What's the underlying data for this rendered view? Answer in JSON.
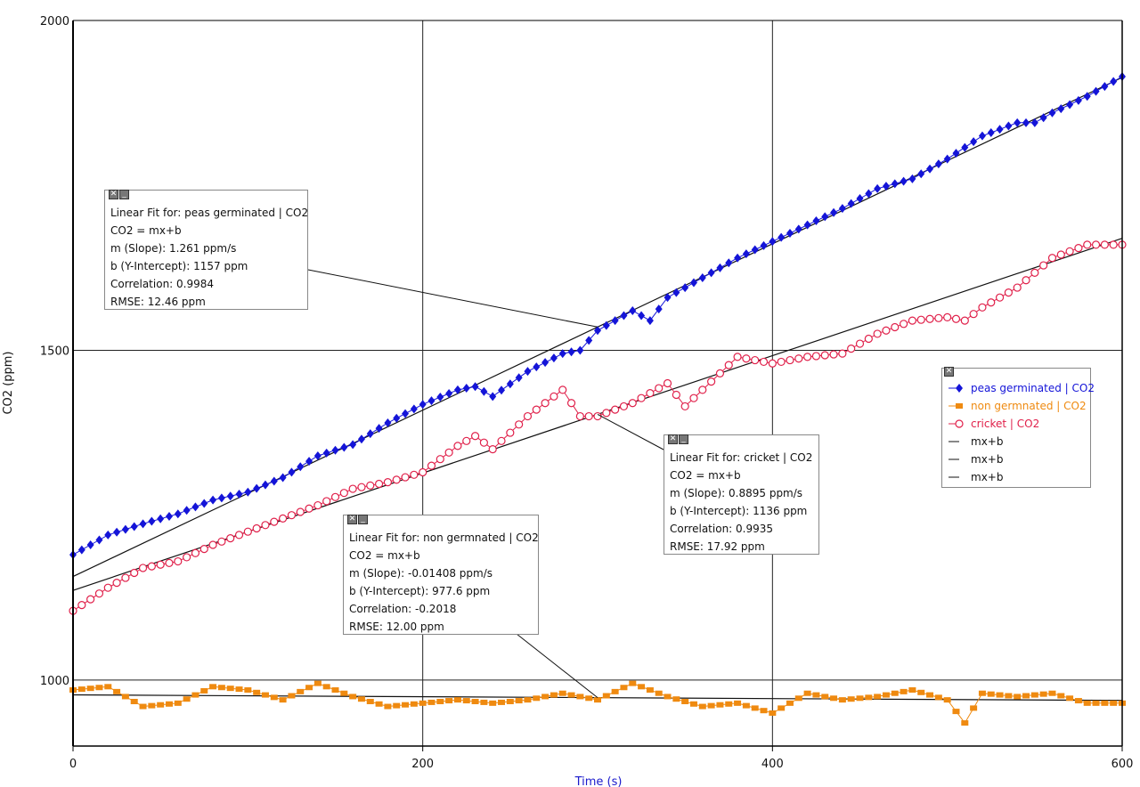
{
  "chart_data": {
    "type": "line",
    "xlabel": "Time (s)",
    "ylabel": "CO2 (ppm)",
    "xlim": [
      0,
      600
    ],
    "ylim": [
      900,
      2000
    ],
    "x_ticks": [
      0,
      200,
      400,
      600
    ],
    "y_ticks": [
      1000,
      1500,
      2000
    ],
    "x_tick_labels": [
      "0",
      "200",
      "400",
      "600"
    ],
    "y_tick_labels": [
      "1000",
      "1500",
      "2000"
    ],
    "grid": true,
    "legend_position": "right",
    "series": [
      {
        "name": "peas germinated | CO2",
        "color": "#1414d8",
        "marker": "diamond",
        "x": [
          0,
          20,
          40,
          60,
          80,
          100,
          120,
          140,
          160,
          180,
          200,
          220,
          230,
          240,
          260,
          280,
          290,
          300,
          320,
          330,
          340,
          360,
          380,
          400,
          420,
          440,
          460,
          480,
          500,
          520,
          540,
          550,
          560,
          580,
          600
        ],
        "y": [
          1190,
          1220,
          1237,
          1252,
          1273,
          1285,
          1307,
          1340,
          1357,
          1390,
          1418,
          1440,
          1445,
          1430,
          1468,
          1495,
          1500,
          1530,
          1560,
          1545,
          1580,
          1610,
          1640,
          1665,
          1690,
          1715,
          1745,
          1760,
          1790,
          1825,
          1845,
          1845,
          1860,
          1885,
          1915
        ]
      },
      {
        "name": "non germnated | CO2",
        "color": "#ef8a10",
        "marker": "square",
        "x": [
          0,
          20,
          30,
          40,
          60,
          80,
          100,
          120,
          140,
          160,
          180,
          200,
          220,
          240,
          260,
          280,
          300,
          320,
          340,
          360,
          380,
          400,
          420,
          440,
          460,
          480,
          500,
          510,
          520,
          540,
          560,
          580,
          600
        ],
        "y": [
          985,
          990,
          975,
          960,
          965,
          990,
          985,
          970,
          995,
          975,
          960,
          965,
          970,
          965,
          970,
          980,
          970,
          995,
          975,
          960,
          965,
          950,
          980,
          970,
          975,
          985,
          970,
          935,
          980,
          975,
          980,
          965,
          965
        ]
      },
      {
        "name": "cricket | CO2",
        "color": "#e0204a",
        "marker": "circle",
        "x": [
          0,
          20,
          40,
          60,
          80,
          100,
          120,
          140,
          160,
          180,
          200,
          220,
          230,
          240,
          260,
          280,
          290,
          300,
          320,
          340,
          350,
          360,
          380,
          400,
          420,
          440,
          460,
          480,
          500,
          510,
          520,
          540,
          560,
          580,
          600
        ],
        "y": [
          1105,
          1140,
          1170,
          1180,
          1205,
          1225,
          1245,
          1265,
          1290,
          1300,
          1315,
          1355,
          1370,
          1350,
          1400,
          1440,
          1400,
          1400,
          1420,
          1450,
          1415,
          1440,
          1490,
          1480,
          1490,
          1495,
          1525,
          1545,
          1550,
          1545,
          1565,
          1595,
          1640,
          1660,
          1660
        ]
      },
      {
        "name": "mx+b",
        "color": "#111111",
        "fit_for": "peas germinated | CO2",
        "m": 1.261,
        "b": 1157
      },
      {
        "name": "mx+b",
        "color": "#111111",
        "fit_for": "non germnated | CO2",
        "m": -0.01408,
        "b": 977.6
      },
      {
        "name": "mx+b",
        "color": "#111111",
        "fit_for": "cricket | CO2",
        "m": 0.8895,
        "b": 1136
      }
    ]
  },
  "fit_boxes": [
    {
      "id": "peas",
      "lines": [
        "Linear Fit for: peas germinated | CO2",
        "CO2 = mx+b",
        "m (Slope): 1.261 ppm/s",
        "b (Y-Intercept): 1157 ppm",
        "Correlation: 0.9984",
        "RMSE: 12.46 ppm"
      ]
    },
    {
      "id": "non",
      "lines": [
        "Linear Fit for: non germnated | CO2",
        "CO2 = mx+b",
        "m (Slope): -0.01408 ppm/s",
        "b (Y-Intercept): 977.6 ppm",
        "Correlation: -0.2018",
        "RMSE: 12.00 ppm"
      ]
    },
    {
      "id": "cricket",
      "lines": [
        "Linear Fit for:  cricket | CO2",
        "CO2 = mx+b",
        "m (Slope): 0.8895 ppm/s",
        "b (Y-Intercept): 1136 ppm",
        "Correlation: 0.9935",
        "RMSE: 17.92 ppm"
      ]
    }
  ],
  "buttons": {
    "close_symbol": "✕",
    "minimize_symbol": "_"
  },
  "legend": {
    "items": [
      {
        "label": "peas germinated | CO2",
        "color": "#1414d8",
        "marker": "diamond"
      },
      {
        "label": "non germnated | CO2",
        "color": "#ef8a10",
        "marker": "square"
      },
      {
        "label": "cricket | CO2",
        "color": "#e0204a",
        "marker": "circle"
      },
      {
        "label": "mx+b",
        "color": "#111111",
        "marker": "none"
      },
      {
        "label": "mx+b",
        "color": "#111111",
        "marker": "none"
      },
      {
        "label": "mx+b",
        "color": "#111111",
        "marker": "none"
      }
    ]
  }
}
